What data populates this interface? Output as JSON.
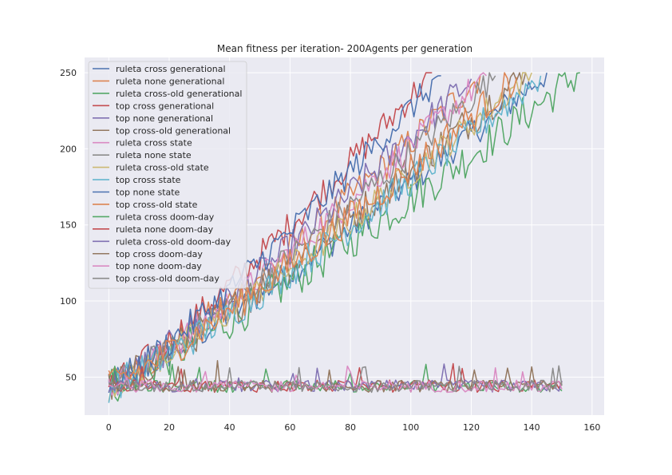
{
  "chart_data": {
    "type": "line",
    "title": "Mean fitness per iteration- 200Agents per generation",
    "xlabel": "",
    "ylabel": "",
    "xlim": [
      -8,
      164
    ],
    "ylim": [
      25,
      260
    ],
    "xticks": [
      0,
      20,
      40,
      60,
      80,
      100,
      120,
      140,
      160
    ],
    "yticks": [
      50,
      100,
      150,
      200,
      250
    ],
    "grid": true,
    "legend_position": "upper-left",
    "series": [
      {
        "name": "ruleta cross generational",
        "color": "#4c72b0",
        "shape": "climb",
        "start": 44,
        "end_x": 145,
        "end_y": 250,
        "noise": 10
      },
      {
        "name": "ruleta none generational",
        "color": "#dd8452",
        "shape": "climb",
        "start": 44,
        "end_x": 123,
        "end_y": 248,
        "noise": 11
      },
      {
        "name": "ruleta cross-old generational",
        "color": "#55a868",
        "shape": "climb",
        "start": 44,
        "end_x": 156,
        "end_y": 250,
        "noise": 13
      },
      {
        "name": "top cross generational",
        "color": "#c44e52",
        "shape": "climb",
        "start": 44,
        "end_x": 107,
        "end_y": 250,
        "noise": 10
      },
      {
        "name": "top none generational",
        "color": "#8172b3",
        "shape": "climb",
        "start": 44,
        "end_x": 120,
        "end_y": 246,
        "noise": 11
      },
      {
        "name": "top cross-old generational",
        "color": "#937860",
        "shape": "climb",
        "start": 44,
        "end_x": 138,
        "end_y": 250,
        "noise": 12
      },
      {
        "name": "ruleta cross state",
        "color": "#da8bc3",
        "shape": "climb",
        "start": 44,
        "end_x": 125,
        "end_y": 248,
        "noise": 10
      },
      {
        "name": "ruleta none state",
        "color": "#8c8c8c",
        "shape": "climb",
        "start": 44,
        "end_x": 128,
        "end_y": 248,
        "noise": 10
      },
      {
        "name": "ruleta cross-old state",
        "color": "#ccb974",
        "shape": "climb",
        "start": 44,
        "end_x": 140,
        "end_y": 250,
        "noise": 10
      },
      {
        "name": "top cross state",
        "color": "#64b5cd",
        "shape": "climb",
        "start": 44,
        "end_x": 143,
        "end_y": 248,
        "noise": 11
      },
      {
        "name": "top none state",
        "color": "#4c72b0",
        "shape": "climb",
        "start": 44,
        "end_x": 110,
        "end_y": 248,
        "noise": 10
      },
      {
        "name": "top cross-old state",
        "color": "#dd8452",
        "shape": "climb",
        "start": 44,
        "end_x": 135,
        "end_y": 247,
        "noise": 11
      },
      {
        "name": "ruleta cross doom-day",
        "color": "#55a868",
        "shape": "flat",
        "start": 44,
        "end_x": 150,
        "end_y": 44,
        "noise": 4
      },
      {
        "name": "ruleta none doom-day",
        "color": "#c44e52",
        "shape": "flat",
        "start": 44,
        "end_x": 150,
        "end_y": 44,
        "noise": 4
      },
      {
        "name": "ruleta cross-old doom-day",
        "color": "#8172b3",
        "shape": "flat",
        "start": 44,
        "end_x": 150,
        "end_y": 44,
        "noise": 4
      },
      {
        "name": "top cross doom-day",
        "color": "#937860",
        "shape": "flat",
        "start": 44,
        "end_x": 150,
        "end_y": 44,
        "noise": 4
      },
      {
        "name": "top none doom-day",
        "color": "#da8bc3",
        "shape": "flat",
        "start": 44,
        "end_x": 150,
        "end_y": 44,
        "noise": 4
      },
      {
        "name": "top cross-old doom-day",
        "color": "#8c8c8c",
        "shape": "flat",
        "start": 44,
        "end_x": 150,
        "end_y": 44,
        "noise": 4
      }
    ]
  }
}
